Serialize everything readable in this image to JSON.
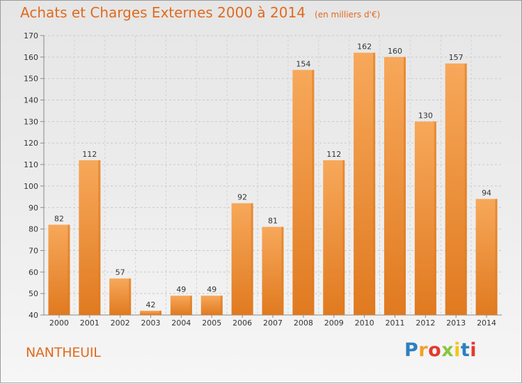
{
  "header": {
    "title": "Achats et Charges Externes 2000 à 2014",
    "subtitle": "(en milliers d'€)"
  },
  "footer": {
    "commune": "NANTHEUIL",
    "logo_text": "Proxiti",
    "logo_colors": [
      "#2d7fc1",
      "#f0a02a",
      "#e33a2e",
      "#8bc53f",
      "#f5c518",
      "#2d7fc1",
      "#e33a2e"
    ]
  },
  "chart_data": {
    "type": "bar",
    "title": "Achats et Charges Externes 2000 à 2014",
    "subtitle": "(en milliers d'€)",
    "categories": [
      "2000",
      "2001",
      "2002",
      "2003",
      "2004",
      "2005",
      "2006",
      "2007",
      "2008",
      "2009",
      "2010",
      "2011",
      "2012",
      "2013",
      "2014"
    ],
    "values": [
      82,
      112,
      57,
      42,
      49,
      49,
      92,
      81,
      154,
      112,
      162,
      160,
      130,
      157,
      94
    ],
    "ylim": [
      40,
      170
    ],
    "yticks": [
      40,
      50,
      60,
      70,
      80,
      90,
      100,
      110,
      120,
      130,
      140,
      150,
      160,
      170
    ],
    "xlabel": "",
    "ylabel": "",
    "grid": true,
    "data_labels": true,
    "bar_color": "#f0913a",
    "bar_color_light": "#f7a85a",
    "bar_color_dark": "#e07a20"
  }
}
